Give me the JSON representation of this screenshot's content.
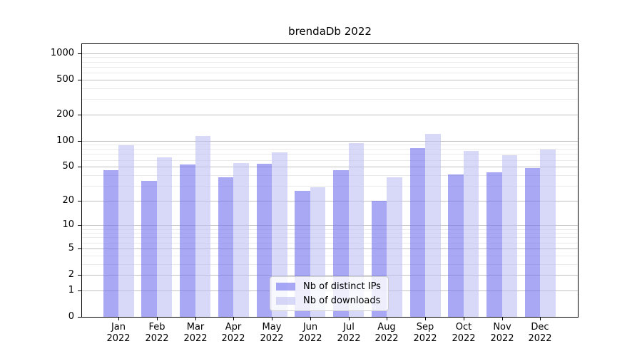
{
  "chart_data": {
    "type": "bar",
    "title": "brendaDb 2022",
    "categories": [
      "Jan",
      "Feb",
      "Mar",
      "Apr",
      "May",
      "Jun",
      "Jul",
      "Aug",
      "Sep",
      "Oct",
      "Nov",
      "Dec"
    ],
    "category_sublabel": "2022",
    "series": [
      {
        "name": "Nb of distinct IPs",
        "color": "rgba(110,110,238,0.6)",
        "values": [
          46,
          34,
          53,
          38,
          54,
          26,
          46,
          20,
          82,
          41,
          43,
          48
        ]
      },
      {
        "name": "Nb of downloads",
        "color": "rgba(190,190,243,0.6)",
        "values": [
          88,
          64,
          113,
          55,
          74,
          29,
          94,
          38,
          119,
          76,
          68,
          79
        ]
      }
    ],
    "yscale": "log1p",
    "ylim": [
      0,
      1264
    ],
    "yticks": [
      0,
      1,
      2,
      5,
      10,
      20,
      50,
      100,
      200,
      500,
      1000
    ],
    "ytick_labels": [
      "0",
      "1",
      "2",
      "5",
      "10",
      "20",
      "50",
      "100",
      "200",
      "500",
      "1000"
    ],
    "minor_gridlines": [
      3,
      4,
      6,
      7,
      8,
      9,
      30,
      40,
      60,
      70,
      80,
      90,
      300,
      400,
      600,
      700,
      800,
      900
    ],
    "grid": true,
    "legend_position": "lower center"
  },
  "colors": {
    "bar_distinct_ips": "rgba(110,110,238,0.6)",
    "bar_downloads": "rgba(190,190,243,0.6)",
    "grid_major": "#c0c0c0",
    "grid_minor": "#eaeaea",
    "axis": "#000000",
    "background": "#ffffff"
  }
}
